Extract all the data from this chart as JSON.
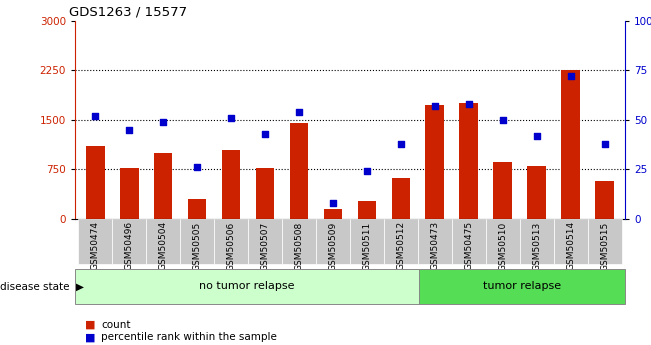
{
  "title": "GDS1263 / 15577",
  "samples": [
    "GSM50474",
    "GSM50496",
    "GSM50504",
    "GSM50505",
    "GSM50506",
    "GSM50507",
    "GSM50508",
    "GSM50509",
    "GSM50511",
    "GSM50512",
    "GSM50473",
    "GSM50475",
    "GSM50510",
    "GSM50513",
    "GSM50514",
    "GSM50515"
  ],
  "counts": [
    1100,
    770,
    1000,
    300,
    1050,
    770,
    1460,
    150,
    280,
    620,
    1720,
    1750,
    860,
    800,
    2250,
    580
  ],
  "percentiles": [
    52,
    45,
    49,
    26,
    51,
    43,
    54,
    8,
    24,
    38,
    57,
    58,
    50,
    42,
    72,
    38
  ],
  "no_relapse_count": 10,
  "tumor_relapse_count": 6,
  "ylim_left": [
    0,
    3000
  ],
  "ylim_right": [
    0,
    100
  ],
  "yticks_left": [
    0,
    750,
    1500,
    2250,
    3000
  ],
  "yticks_right": [
    0,
    25,
    50,
    75,
    100
  ],
  "bar_color": "#CC2200",
  "dot_color": "#0000CC",
  "no_relapse_color": "#CCFFCC",
  "tumor_relapse_color": "#55DD55",
  "label_bg_color": "#C8C8C8",
  "legend_count_label": "count",
  "legend_percentile_label": "percentile rank within the sample",
  "disease_state_label": "disease state",
  "no_relapse_label": "no tumor relapse",
  "tumor_relapse_label": "tumor relapse"
}
